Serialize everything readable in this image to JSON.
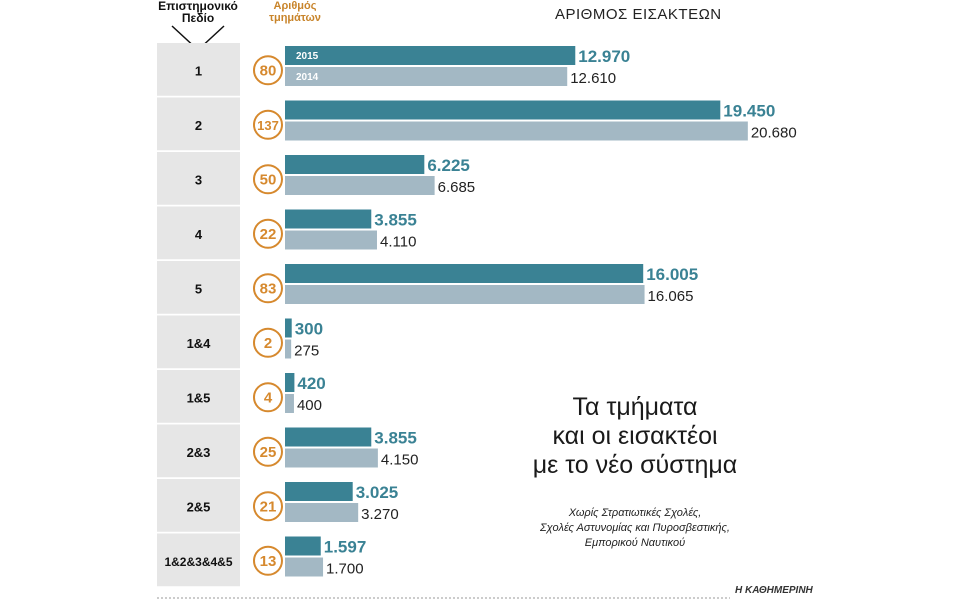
{
  "headers": {
    "field_line1": "Επιστημονικό",
    "field_line2": "Πεδίο",
    "depts_line1": "Αριθμός",
    "depts_line2": "τμημάτων",
    "admitted": "ΑΡΙΘΜΟΣ ΕΙΣΑΚΤΕΩΝ"
  },
  "note": {
    "title_line1": "Τα τμήματα",
    "title_line2": "και οι εισακτέοι",
    "title_line3": "με το νέο σύστημα",
    "sub_line1": "Χωρίς Στρατιωτικές Σχολές,",
    "sub_line2": "Σχολές Αστυνομίας και Πυροσβεστικής,",
    "sub_line3": "Εμπορικού Ναυτικού"
  },
  "credit": "Η ΚΑΘΗΜΕΡΙΝΗ",
  "colors": {
    "bar_2015": "#3a8294",
    "bar_2014": "#a3b8c4",
    "label_2015": "#3a8294",
    "label_2014": "#222222",
    "circle": "#d6892e",
    "left_band": "#e6e6e6"
  },
  "chart_data": {
    "type": "bar",
    "orientation": "horizontal",
    "title": "ΑΡΙΘΜΟΣ ΕΙΣΑΚΤΕΩΝ",
    "series_names": [
      "2015",
      "2014"
    ],
    "xlim": [
      0,
      21000
    ],
    "rows": [
      {
        "field": "1",
        "depts": "80",
        "v2015": 12970,
        "l2015": "12.970",
        "v2014": 12610,
        "l2014": "12.610"
      },
      {
        "field": "2",
        "depts": "137",
        "v2015": 19450,
        "l2015": "19.450",
        "v2014": 20680,
        "l2014": "20.680"
      },
      {
        "field": "3",
        "depts": "50",
        "v2015": 6225,
        "l2015": "6.225",
        "v2014": 6685,
        "l2014": "6.685"
      },
      {
        "field": "4",
        "depts": "22",
        "v2015": 3855,
        "l2015": "3.855",
        "v2014": 4110,
        "l2014": "4.110"
      },
      {
        "field": "5",
        "depts": "83",
        "v2015": 16005,
        "l2015": "16.005",
        "v2014": 16065,
        "l2014": "16.065"
      },
      {
        "field": "1&4",
        "depts": "2",
        "v2015": 300,
        "l2015": "300",
        "v2014": 275,
        "l2014": "275"
      },
      {
        "field": "1&5",
        "depts": "4",
        "v2015": 420,
        "l2015": "420",
        "v2014": 400,
        "l2014": "400"
      },
      {
        "field": "2&3",
        "depts": "25",
        "v2015": 3855,
        "l2015": "3.855",
        "v2014": 4150,
        "l2014": "4.150"
      },
      {
        "field": "2&5",
        "depts": "21",
        "v2015": 3025,
        "l2015": "3.025",
        "v2014": 3270,
        "l2014": "3.270"
      },
      {
        "field": "1&2&3&4&5",
        "depts": "13",
        "v2015": 1597,
        "l2015": "1.597",
        "v2014": 1700,
        "l2014": "1.700"
      }
    ]
  }
}
